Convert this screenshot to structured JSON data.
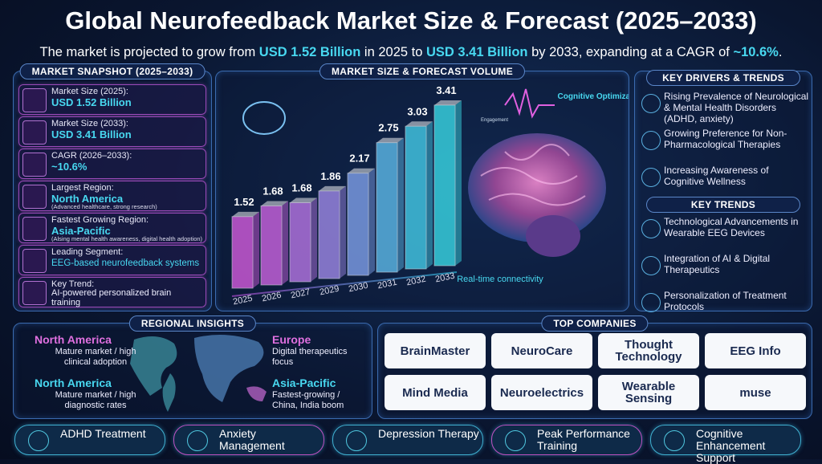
{
  "header": {
    "title": "Global Neurofeedback Market Size & Forecast (2025–2033)",
    "subtitle": [
      "The market is projected to grow from ",
      "USD 1.52 Billion",
      " in 2025 to ",
      "USD 3.41 Billion",
      " by 2033, expanding at a CAGR of ",
      "~10.6%",
      "."
    ]
  },
  "snapshot": {
    "title": "MARKET SNAPSHOT (2025–2033)",
    "items": [
      {
        "label": "Market Size (2025):",
        "value": "USD 1.52 Billion"
      },
      {
        "label": "Market Size (2033):",
        "value": "USD 3.41 Billion"
      },
      {
        "label": "CAGR (2026–2033):",
        "value": "~10.6%"
      },
      {
        "label": "Largest Region:",
        "value": "North America",
        "note": "(Advanced healthcare, strong research)"
      },
      {
        "label": "Fastest Growing Region:",
        "value": "Asia-Pacific",
        "note": "(Alsing mental health awareness, digital health adoption)"
      },
      {
        "label": "Leading Segment:",
        "value": "EEG-based neurofeedback systems"
      },
      {
        "label": "Key Trend:",
        "value": "AI-powered personalized brain training"
      }
    ]
  },
  "chart_data": {
    "type": "bar",
    "title": "MARKET SIZE & FORECAST VOLUME",
    "categories": [
      "2025",
      "2026",
      "2027",
      "2029",
      "2030",
      "2031",
      "2032",
      "2033"
    ],
    "values": [
      1.52,
      1.68,
      1.68,
      1.86,
      2.17,
      2.75,
      3.03,
      3.41
    ],
    "colors": [
      "#e060e8",
      "#d868ec",
      "#c27cf0",
      "#a890f2",
      "#86a8f4",
      "#62c4f4",
      "#48d6f2",
      "#3ce4f0"
    ],
    "annotations": [
      "Cognitive Optimization",
      "Real-time connectivity",
      "Engagement"
    ]
  },
  "key_drivers": {
    "title": "KEY DRIVERS & TRENDS",
    "items": [
      "Rising Prevalence of Neurological & Mental Health Disorders (ADHD, anxiety)",
      "Growing Preference for Non-Pharmacological Therapies",
      "Increasing Awareness of Cognitive Wellness"
    ]
  },
  "key_trends": {
    "title": "KEY TRENDS",
    "items": [
      "Technological Advancements in Wearable EEG Devices",
      "Integration of AI & Digital Therapeutics",
      "Personalization of Treatment Protocols"
    ]
  },
  "regional": {
    "title": "REGIONAL INSIGHTS",
    "items": [
      {
        "region": "North America",
        "text": "Mature market / high clinical adoption"
      },
      {
        "region": "Europe",
        "text": "Digital therapeutics focus"
      },
      {
        "region": "North America",
        "text": "Mature market / high diagnostic rates"
      },
      {
        "region": "Asia-Pacific",
        "text": "Fastest-growing / China, India boom"
      }
    ]
  },
  "companies": {
    "title": "TOP COMPANIES",
    "items": [
      "BrainMaster",
      "NeuroCare",
      "Thought Technology",
      "EEG Info",
      "Mind Media",
      "Neuroelectrics",
      "Wearable Sensing",
      "muse"
    ]
  },
  "applications": [
    "ADHD Treatment",
    "Anxiety Management",
    "Depression Therapy",
    "Peak Performance Training",
    "Cognitive Enhancement Support"
  ]
}
